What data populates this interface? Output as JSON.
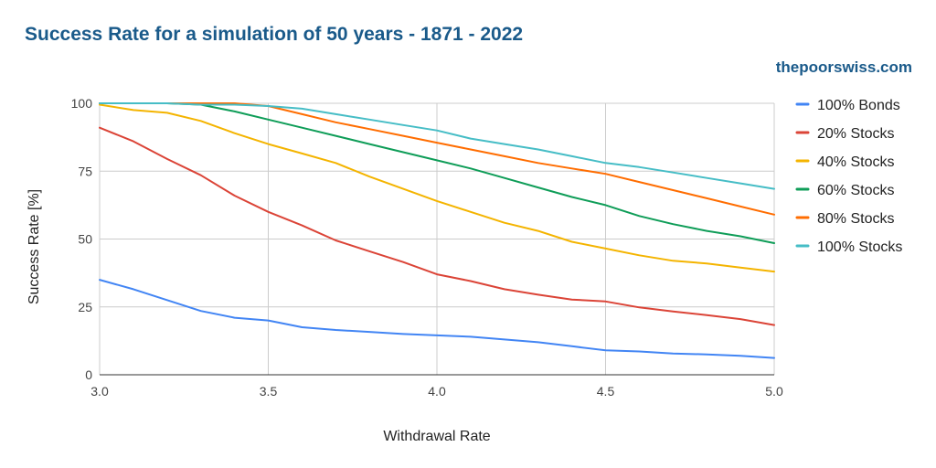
{
  "title": "Success Rate for a simulation of 50 years - 1871 - 2022",
  "watermark": "thepoorswiss.com",
  "chart_data": {
    "type": "line",
    "title": "Success Rate for a simulation of 50 years - 1871 - 2022",
    "xlabel": "Withdrawal Rate",
    "ylabel": "Success Rate [%]",
    "xlim": [
      3.0,
      5.0
    ],
    "ylim": [
      0,
      100
    ],
    "x_ticks": [
      "3.0",
      "3.5",
      "4.0",
      "4.5",
      "5.0"
    ],
    "y_ticks": [
      "0",
      "25",
      "50",
      "75",
      "100"
    ],
    "grid": true,
    "legend_position": "right",
    "x": [
      3.0,
      3.1,
      3.2,
      3.3,
      3.4,
      3.5,
      3.6,
      3.7,
      3.8,
      3.9,
      4.0,
      4.1,
      4.2,
      4.3,
      4.4,
      4.5,
      4.6,
      4.7,
      4.8,
      4.9,
      5.0
    ],
    "series": [
      {
        "name": "100% Bonds",
        "color": "#4285f4",
        "values": [
          35,
          31.5,
          27.5,
          23.5,
          21,
          20,
          17.5,
          16.5,
          15.8,
          15,
          14.5,
          14,
          13,
          12,
          10.5,
          9,
          8.6,
          7.8,
          7.5,
          7,
          6.2
        ]
      },
      {
        "name": "20% Stocks",
        "color": "#db4437",
        "values": [
          91,
          86,
          79.5,
          73.5,
          66,
          60,
          55,
          49.5,
          45.5,
          41.5,
          37,
          34.5,
          31.5,
          29.5,
          27.7,
          27,
          24.8,
          23.3,
          22,
          20.5,
          18.3
        ]
      },
      {
        "name": "40% Stocks",
        "color": "#f4b400",
        "values": [
          99.5,
          97.5,
          96.5,
          93.5,
          89,
          85,
          81.5,
          78,
          73,
          68.5,
          64,
          60,
          56,
          53,
          49,
          46.5,
          44,
          42,
          41,
          39.5,
          38
        ]
      },
      {
        "name": "60% Stocks",
        "color": "#0f9d58",
        "values": [
          100,
          100,
          100,
          99.5,
          97,
          94,
          91,
          88,
          85,
          82,
          79,
          76,
          72.5,
          69,
          65.5,
          62.5,
          58.5,
          55.5,
          53,
          51,
          48.5
        ]
      },
      {
        "name": "80% Stocks",
        "color": "#ff6d01",
        "values": [
          100,
          100,
          100,
          100,
          100,
          99,
          96,
          93,
          90.5,
          88,
          85.5,
          83,
          80.5,
          78,
          76,
          74,
          71,
          68,
          65,
          62,
          59
        ]
      },
      {
        "name": "100% Stocks",
        "color": "#46bdc6",
        "values": [
          100,
          100,
          100,
          99.5,
          99.5,
          99,
          98,
          96,
          94,
          92,
          90,
          87,
          85,
          83,
          80.5,
          78,
          76.5,
          74.5,
          72.5,
          70.5,
          68.5
        ]
      }
    ]
  }
}
